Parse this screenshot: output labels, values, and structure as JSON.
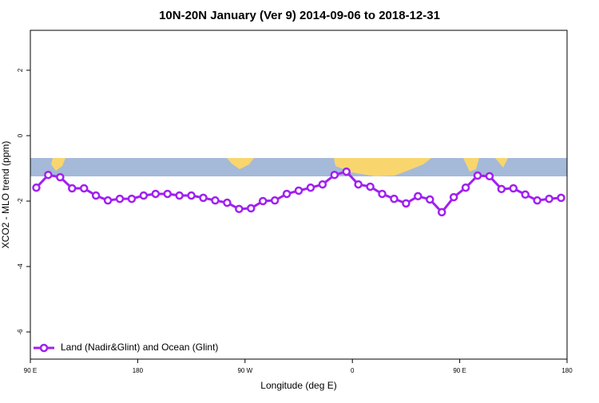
{
  "chart_data": {
    "type": "line",
    "title": "10N-20N January (Ver 9)   2014-09-06 to 2018-12-31",
    "x_label": "Longitude (deg E)",
    "y_label": "XCO2 - MLO trend (ppm)",
    "x": [
      95,
      105,
      115,
      125,
      135,
      145,
      155,
      165,
      175,
      185,
      195,
      205,
      215,
      225,
      235,
      245,
      255,
      265,
      275,
      285,
      295,
      305,
      315,
      325,
      335,
      345,
      355,
      365,
      375,
      385,
      395,
      405,
      415,
      425,
      435,
      445,
      455,
      465,
      475,
      485,
      495,
      505,
      515,
      525,
      535
    ],
    "series": [
      {
        "name": "Land (Nadir&Glint) and Ocean (Glint)",
        "color": "#a020f0",
        "values": [
          -1.59,
          -1.2,
          -1.27,
          -1.61,
          -1.61,
          -1.83,
          -1.98,
          -1.93,
          -1.93,
          -1.83,
          -1.78,
          -1.78,
          -1.83,
          -1.83,
          -1.9,
          -1.98,
          -2.05,
          -2.24,
          -2.22,
          -2.0,
          -1.98,
          -1.78,
          -1.68,
          -1.59,
          -1.49,
          -1.2,
          -1.1,
          -1.49,
          -1.56,
          -1.78,
          -1.93,
          -2.07,
          -1.85,
          -1.95,
          -2.34,
          -1.88,
          -1.59,
          -1.22,
          -1.24,
          -1.63,
          -1.61,
          -1.8,
          -1.98,
          -1.93,
          -1.9
        ]
      }
    ],
    "xlim": [
      90,
      540
    ],
    "xticks": [
      {
        "value": 90,
        "label": "90 E"
      },
      {
        "value": 180,
        "label": "180"
      },
      {
        "value": 270,
        "label": "90 W"
      },
      {
        "value": 360,
        "label": "0"
      },
      {
        "value": 450,
        "label": "90 E"
      },
      {
        "value": 540,
        "label": "180"
      }
    ],
    "ylim": [
      -6.83,
      3.22
    ],
    "yticks": [
      -6,
      -4,
      -2,
      0,
      2
    ],
    "legend": "bottom-left"
  }
}
